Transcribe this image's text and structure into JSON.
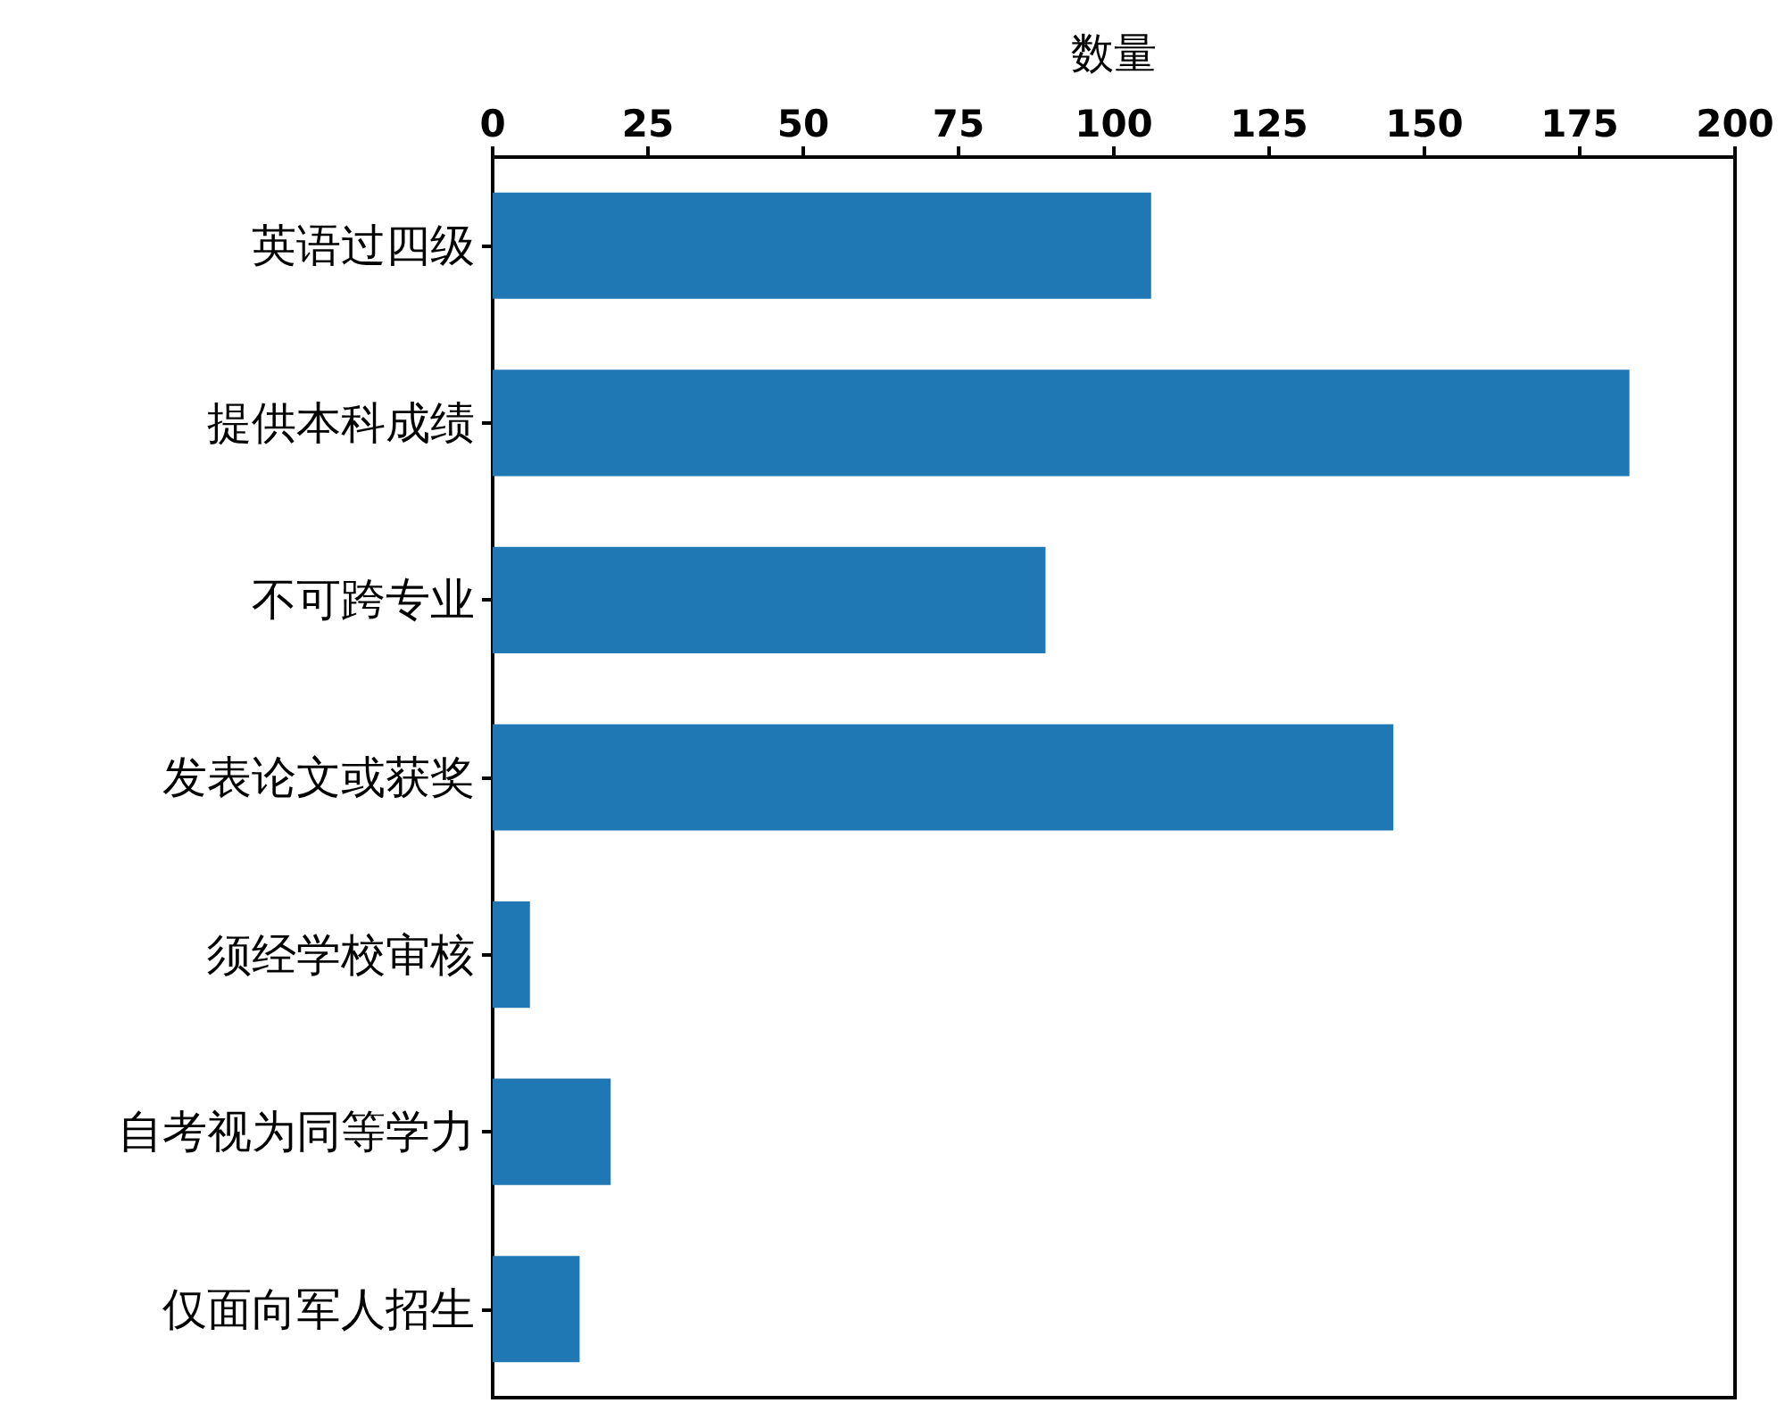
{
  "chart_data": {
    "type": "bar",
    "orientation": "horizontal",
    "xlabel": "数量",
    "categories": [
      "英语过四级",
      "提供本科成绩",
      "不可跨专业",
      "发表论文或获奖",
      "须经学校审核",
      "自考视为同等学力",
      "仅面向军人招生"
    ],
    "values": [
      106,
      183,
      89,
      145,
      6,
      19,
      14
    ],
    "color": "#1f77b4",
    "xlim": [
      0,
      200
    ],
    "xticks": [
      0,
      25,
      50,
      75,
      100,
      125,
      150,
      175,
      200
    ],
    "grid": false
  }
}
